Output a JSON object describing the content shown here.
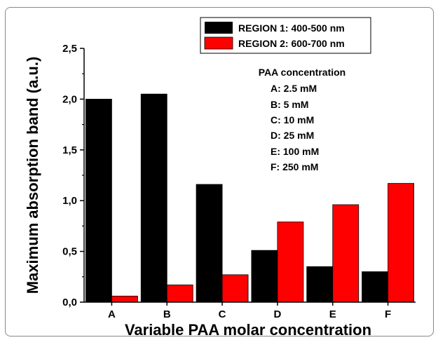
{
  "chart_data": {
    "type": "bar",
    "categories": [
      "A",
      "B",
      "C",
      "D",
      "E",
      "F"
    ],
    "series": [
      {
        "name": "REGION 1: 400-500 nm",
        "color": "#000000",
        "values": [
          2.0,
          2.05,
          1.16,
          0.51,
          0.35,
          0.3
        ]
      },
      {
        "name": "REGION 2: 600-700 nm",
        "color": "#ff0000",
        "values": [
          0.06,
          0.17,
          0.27,
          0.79,
          0.96,
          1.17
        ]
      }
    ],
    "xlabel": "Variable PAA molar concentration",
    "ylabel": "Maximum absorption band (a.u.)",
    "ylim": [
      0,
      2.5
    ],
    "yticks": [
      "0,0",
      "0,5",
      "1,0",
      "1,5",
      "2,0",
      "2,5"
    ],
    "legend_position": "top-right",
    "annotation": {
      "title": "PAA concentration",
      "lines": [
        "A: 2.5 mM",
        "B: 5 mM",
        "C: 10 mM",
        "D: 25 mM",
        "E: 100 mM",
        "F: 250 mM"
      ]
    },
    "grid": false
  }
}
